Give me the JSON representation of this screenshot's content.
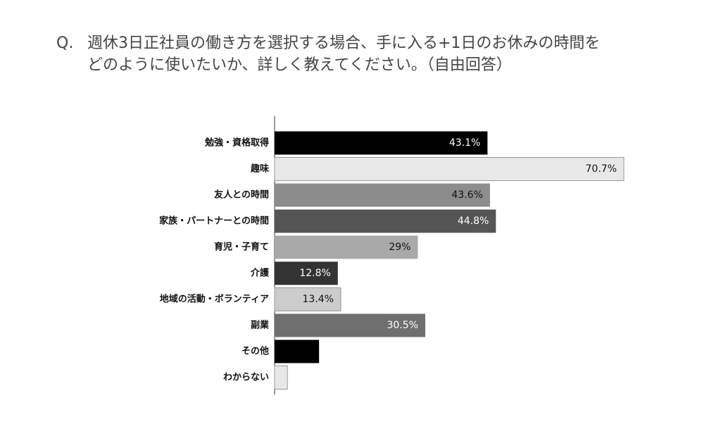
{
  "chart_data": {
    "type": "hbar",
    "question_label": "Q.",
    "title": [
      "週休3日正社員の働き方を選択する場合、手に入る+1日のお休みの時間を",
      "どのように使いたいか、詳しく教えてください。（自由回答）"
    ],
    "categories": [
      "勉強・資格取得",
      "趣味",
      "友人との時間",
      "家族・パートナーとの時間",
      "育児・子育て",
      "介護",
      "地域の活動・ボランティア",
      "副業",
      "その他",
      "わからない"
    ],
    "values": [
      43.1,
      70.7,
      43.6,
      44.8,
      29,
      12.8,
      13.4,
      30.5,
      9,
      2.6
    ],
    "value_labels": [
      "43.1%",
      "70.7%",
      "43.6%",
      "44.8%",
      "29%",
      "12.8%",
      "13.4%",
      "30.5%",
      null,
      null
    ],
    "colors": [
      "#000000",
      "#e8e8e8",
      "#8c8c8c",
      "#555555",
      "#a9a9a9",
      "#333333",
      "#cccccc",
      "#6f6f6f",
      "#000000",
      "#e8e8e8"
    ]
  }
}
